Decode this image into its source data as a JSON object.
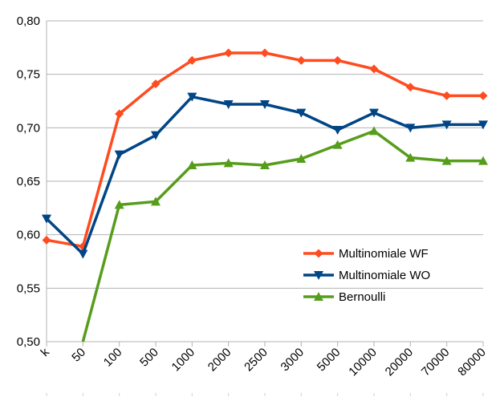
{
  "chart_data": {
    "type": "line",
    "categories": [
      "k",
      "50",
      "100",
      "500",
      "1000",
      "2000",
      "2500",
      "3000",
      "5000",
      "10000",
      "20000",
      "70000",
      "80000"
    ],
    "ylim": [
      0.5,
      0.8
    ],
    "yticks": [
      "0,50",
      "0,55",
      "0,60",
      "0,65",
      "0,70",
      "0,75",
      "0,80"
    ],
    "ytick_values": [
      0.5,
      0.55,
      0.6,
      0.65,
      0.7,
      0.75,
      0.8
    ],
    "grid": "horizontal",
    "legend_position": "right",
    "series": [
      {
        "name": "Multinomiale WF",
        "color": "#ff4b1f",
        "marker": "diamond",
        "values": [
          0.595,
          0.589,
          0.713,
          0.741,
          0.763,
          0.77,
          0.77,
          0.763,
          0.763,
          0.755,
          0.738,
          0.73,
          0.73
        ]
      },
      {
        "name": "Multinomiale WO",
        "color": "#004586",
        "marker": "triangle-down",
        "values": [
          0.615,
          0.582,
          0.675,
          0.693,
          0.729,
          0.722,
          0.722,
          0.714,
          0.698,
          0.714,
          0.7,
          0.703,
          0.703
        ]
      },
      {
        "name": "Bernoulli",
        "color": "#579d1c",
        "marker": "triangle-up",
        "values": [
          null,
          0.5,
          0.628,
          0.631,
          0.665,
          0.667,
          0.665,
          0.671,
          0.684,
          0.697,
          0.672,
          0.669,
          0.669
        ]
      }
    ]
  }
}
